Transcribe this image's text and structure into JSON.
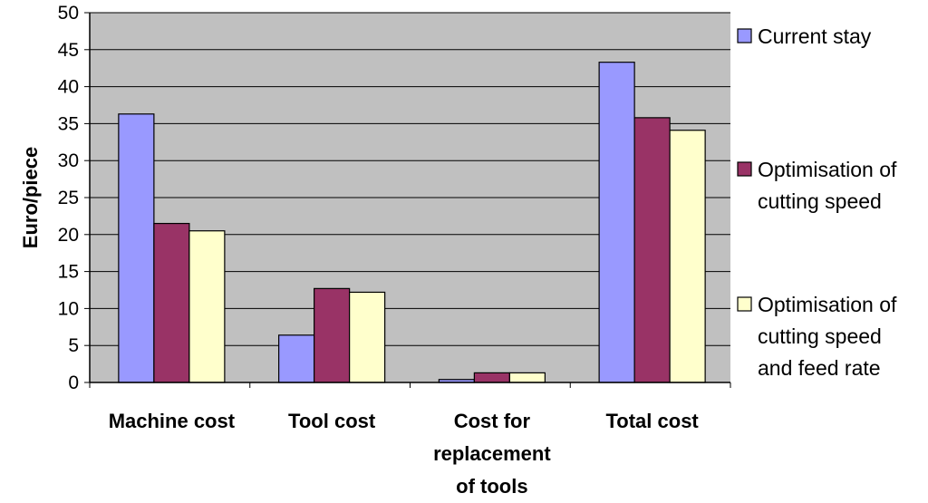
{
  "chart_data": {
    "type": "bar",
    "title": "",
    "xlabel": "",
    "ylabel": "Euro/piece",
    "ylim": [
      0,
      50
    ],
    "yticks": [
      0,
      5,
      10,
      15,
      20,
      25,
      30,
      35,
      40,
      45,
      50
    ],
    "grid": true,
    "legend_position": "right",
    "categories": [
      [
        "Machine cost"
      ],
      [
        "Tool cost"
      ],
      [
        "Cost for",
        "replacement",
        "of tools"
      ],
      [
        "Total cost"
      ]
    ],
    "series": [
      {
        "name": [
          "Current stay"
        ],
        "color": "#9999FF",
        "values": [
          36.3,
          6.4,
          0.4,
          43.3
        ]
      },
      {
        "name": [
          "Optimisation of",
          "cutting speed"
        ],
        "color": "#993366",
        "values": [
          21.5,
          12.7,
          1.3,
          35.8
        ]
      },
      {
        "name": [
          "Optimisation of",
          "cutting speed",
          "and feed rate"
        ],
        "color": "#FFFFCC",
        "values": [
          20.5,
          12.2,
          1.3,
          34.1
        ]
      }
    ],
    "colors": {
      "background": "#FFFFFF",
      "plot_area": "#C0C0C0"
    }
  }
}
